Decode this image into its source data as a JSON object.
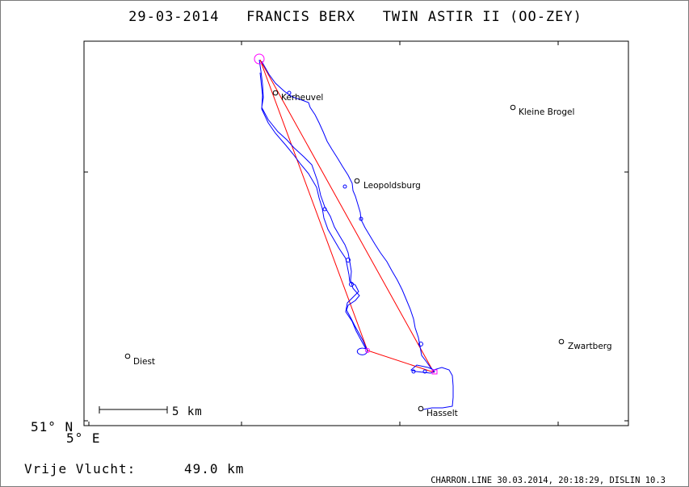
{
  "title": "29-03-2014   FRANCIS BERX   TWIN ASTIR II (OO-ZEY)",
  "places": [
    {
      "name": "Kerheuvel"
    },
    {
      "name": "Kleine Brogel"
    },
    {
      "name": "Leopoldsburg"
    },
    {
      "name": "Diest"
    },
    {
      "name": "Zwartberg"
    },
    {
      "name": "Hasselt"
    }
  ],
  "scale_bar": {
    "label": "5 km"
  },
  "corner": {
    "lat": "51° N",
    "lon": "5° E"
  },
  "distance": {
    "label": "Vrije Vlucht:",
    "value": "49.0 km"
  },
  "footer": "CHARRON.LINE 30.03.2014, 20:18:29, DISLIN 10.3",
  "colors": {
    "track": "#0000ff",
    "task": "#ff0000",
    "start": "#ff00ff",
    "frame": "#000000"
  }
}
